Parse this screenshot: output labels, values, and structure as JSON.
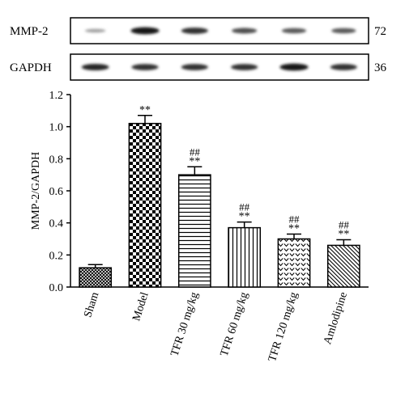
{
  "blots": [
    {
      "label": "MMP-2",
      "size": "72",
      "intensity": [
        0.25,
        0.95,
        0.8,
        0.65,
        0.6,
        0.6
      ]
    },
    {
      "label": "GAPDH",
      "size": "36",
      "intensity": [
        0.85,
        0.8,
        0.8,
        0.8,
        0.95,
        0.8
      ]
    }
  ],
  "chart_data": {
    "type": "bar",
    "title": "",
    "xlabel": "",
    "ylabel": "MMP-2/GAPDH",
    "ylim": [
      0,
      1.2
    ],
    "yticks": [
      "0.0",
      "0.2",
      "0.4",
      "0.6",
      "0.8",
      "1.0",
      "1.2"
    ],
    "categories": [
      "Sham",
      "Model",
      "TFR 30 mg/kg",
      "TFR 60 mg/kg",
      "TFR 120 mg/kg",
      "Amlodipine"
    ],
    "values": [
      0.12,
      1.02,
      0.7,
      0.37,
      0.3,
      0.26
    ],
    "errors": [
      0.02,
      0.05,
      0.05,
      0.035,
      0.03,
      0.035
    ],
    "annotations": [
      {
        "model_vs": "",
        "sham_vs": ""
      },
      {
        "model_vs": "",
        "sham_vs": "**"
      },
      {
        "model_vs": "##",
        "sham_vs": "**"
      },
      {
        "model_vs": "##",
        "sham_vs": "**"
      },
      {
        "model_vs": "##",
        "sham_vs": "**"
      },
      {
        "model_vs": "##",
        "sham_vs": "**"
      }
    ],
    "patterns": [
      "crosshatch",
      "checker",
      "horizontal-lines",
      "vertical-lines",
      "chevrons",
      "diagonal-lines"
    ],
    "grid": false,
    "legend": "none"
  }
}
